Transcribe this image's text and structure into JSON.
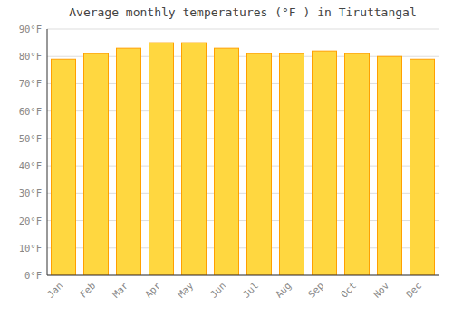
{
  "chart_data": {
    "type": "bar",
    "title": "Average monthly temperatures (°F ) in Tiruttangal",
    "categories": [
      "Jan",
      "Feb",
      "Mar",
      "Apr",
      "May",
      "Jun",
      "Jul",
      "Aug",
      "Sep",
      "Oct",
      "Nov",
      "Dec"
    ],
    "values": [
      79,
      81,
      83,
      85,
      85,
      83,
      81,
      81,
      82,
      81,
      80,
      79
    ],
    "color": "#FFD740",
    "ylim": [
      0,
      90
    ],
    "yticks": [
      {
        "value": 0,
        "label": "0°F"
      },
      {
        "value": 10,
        "label": "10°F"
      },
      {
        "value": 20,
        "label": "20°F"
      },
      {
        "value": 30,
        "label": "30°F"
      },
      {
        "value": 40,
        "label": "40°F"
      },
      {
        "value": 50,
        "label": "50°F"
      },
      {
        "value": 60,
        "label": "60°F"
      },
      {
        "value": 70,
        "label": "70°F"
      },
      {
        "value": 80,
        "label": "80°F"
      },
      {
        "value": 90,
        "label": "90°F"
      }
    ],
    "grid": true
  }
}
